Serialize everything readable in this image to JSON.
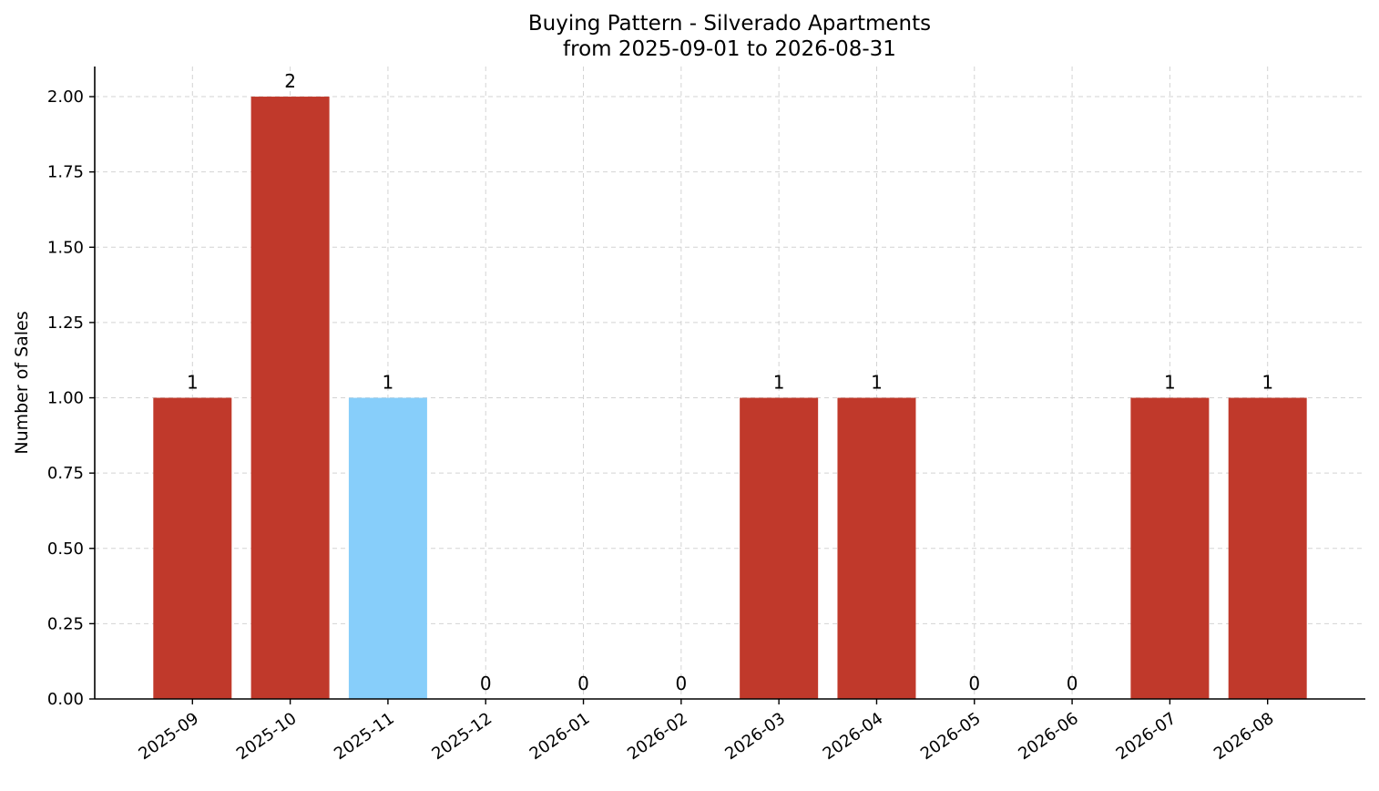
{
  "chart_data": {
    "type": "bar",
    "title": "Buying Pattern - Silverado Apartments",
    "subtitle": "from 2025-09-01 to 2026-08-31",
    "xlabel": "",
    "ylabel": "Number of Sales",
    "categories": [
      "2025-09",
      "2025-10",
      "2025-11",
      "2025-12",
      "2026-01",
      "2026-02",
      "2026-03",
      "2026-04",
      "2026-05",
      "2026-06",
      "2026-07",
      "2026-08"
    ],
    "values": [
      1,
      2,
      1,
      0,
      0,
      0,
      1,
      1,
      0,
      0,
      1,
      1
    ],
    "data_labels": [
      "1",
      "2",
      "1",
      "0",
      "0",
      "0",
      "1",
      "1",
      "0",
      "0",
      "1",
      "1"
    ],
    "bar_colors": [
      "#c0392b",
      "#c0392b",
      "#87cefa",
      "#c0392b",
      "#c0392b",
      "#c0392b",
      "#c0392b",
      "#c0392b",
      "#c0392b",
      "#c0392b",
      "#c0392b",
      "#c0392b"
    ],
    "ylim": [
      0,
      2.1
    ],
    "yticks": [
      0,
      0.25,
      0.5,
      0.75,
      1.0,
      1.25,
      1.5,
      1.75,
      2.0
    ],
    "ytick_labels": [
      "0.00",
      "0.25",
      "0.50",
      "0.75",
      "1.00",
      "1.25",
      "1.50",
      "1.75",
      "2.00"
    ],
    "grid": true,
    "grid_style": "dashed",
    "xtick_rotation": 35
  }
}
